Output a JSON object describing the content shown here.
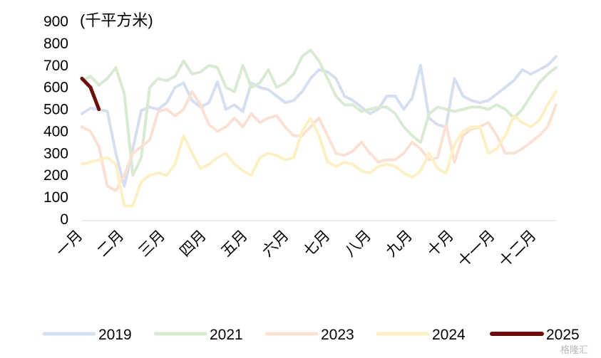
{
  "chart_data": {
    "type": "line",
    "unit_label": "(千平方米)",
    "ylim": [
      0,
      900
    ],
    "y_ticks": [
      "0",
      "100",
      "200",
      "300",
      "400",
      "500",
      "600",
      "700",
      "800",
      "900"
    ],
    "x_tick_labels": [
      "一月",
      "二月",
      "三月",
      "四月",
      "五月",
      "六月",
      "七月",
      "八月",
      "九月",
      "十月",
      "十一月",
      "十二月"
    ],
    "grid": false,
    "legend_position": "bottom",
    "series": [
      {
        "name": "2019",
        "color": "#d6dff0",
        "values": [
          480,
          505,
          500,
          490,
          300,
          150,
          320,
          495,
          510,
          500,
          530,
          600,
          620,
          540,
          510,
          530,
          625,
          500,
          520,
          490,
          620,
          600,
          590,
          560,
          530,
          540,
          580,
          640,
          680,
          670,
          640,
          560,
          540,
          510,
          480,
          500,
          560,
          560,
          500,
          550,
          700,
          460,
          430,
          420,
          640,
          560,
          540,
          530,
          540,
          570,
          600,
          630,
          680,
          660,
          680,
          700,
          740
        ]
      },
      {
        "name": "2021",
        "color": "#d8ead2",
        "values": [
          630,
          650,
          610,
          640,
          690,
          570,
          200,
          280,
          600,
          640,
          630,
          650,
          720,
          660,
          670,
          700,
          690,
          600,
          580,
          700,
          600,
          620,
          680,
          600,
          620,
          660,
          740,
          770,
          720,
          640,
          560,
          520,
          520,
          490,
          500,
          510,
          510,
          480,
          420,
          380,
          350,
          480,
          510,
          500,
          490,
          500,
          510,
          510,
          500,
          520,
          500,
          460,
          500,
          560,
          620,
          660,
          690
        ]
      },
      {
        "name": "2023",
        "color": "#fbe0d4",
        "values": [
          420,
          400,
          330,
          150,
          130,
          200,
          300,
          330,
          360,
          490,
          500,
          470,
          500,
          580,
          520,
          430,
          400,
          420,
          460,
          420,
          480,
          440,
          460,
          470,
          420,
          380,
          380,
          420,
          460,
          380,
          300,
          290,
          310,
          350,
          300,
          260,
          270,
          270,
          300,
          350,
          320,
          270,
          280,
          430,
          260,
          380,
          410,
          420,
          440,
          380,
          300,
          300,
          320,
          350,
          380,
          420,
          520
        ]
      },
      {
        "name": "2024",
        "color": "#fdf0c4",
        "values": [
          250,
          260,
          270,
          280,
          250,
          60,
          60,
          170,
          200,
          210,
          200,
          250,
          380,
          300,
          230,
          250,
          280,
          300,
          250,
          220,
          200,
          280,
          300,
          290,
          270,
          280,
          400,
          460,
          380,
          260,
          240,
          260,
          250,
          220,
          210,
          240,
          250,
          240,
          210,
          190,
          220,
          300,
          230,
          210,
          340,
          400,
          420,
          420,
          300,
          320,
          380,
          470,
          440,
          420,
          450,
          520,
          580
        ]
      },
      {
        "name": "2025",
        "color": "#6b0d0d",
        "values": [
          640,
          600,
          500
        ]
      }
    ]
  },
  "watermark": "格隆汇"
}
